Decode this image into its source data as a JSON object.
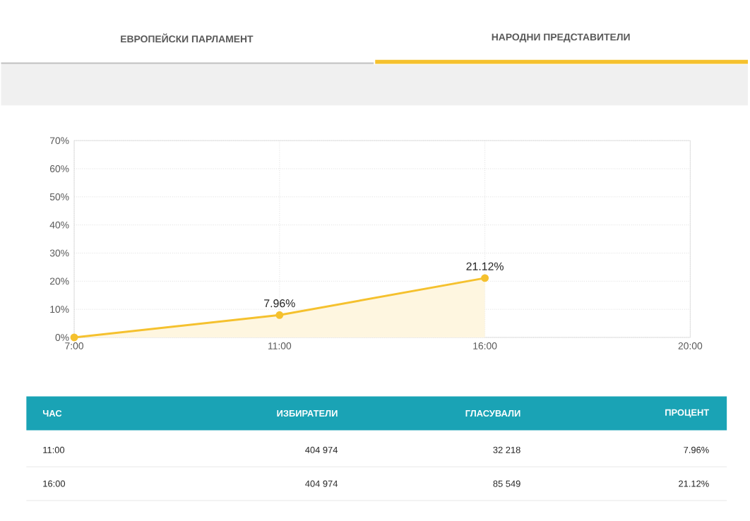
{
  "chart_data": {
    "type": "area",
    "categories": [
      "7:00",
      "11:00",
      "16:00",
      "20:00"
    ],
    "values": [
      0,
      7.96,
      21.12,
      null
    ],
    "value_labels": [
      null,
      "7.96%",
      "21.12%",
      null
    ],
    "color": "#f5c12e",
    "marker": "circle",
    "ylim": [
      0,
      70
    ],
    "yticks": [
      {
        "value": 0,
        "label": "0%"
      },
      {
        "value": 10,
        "label": "10%"
      },
      {
        "value": 20,
        "label": "20%"
      },
      {
        "value": 30,
        "label": "30%"
      },
      {
        "value": 40,
        "label": "40%"
      },
      {
        "value": 50,
        "label": "50%"
      },
      {
        "value": 60,
        "label": "60%"
      },
      {
        "value": 70,
        "label": "70%"
      }
    ],
    "grid": true,
    "annotations": [
      "ЕВРОПЕЙСКИ ПАРЛАМЕНТ",
      "НАРОДНИ ПРЕДСТАВИТЕЛИ",
      "ЧАС",
      "ИЗБИРАТЕЛИ",
      "ГЛАСУВАЛИ",
      "ПРОЦЕНТ",
      "11:00",
      "404 974",
      "32 218",
      "7.96%",
      "16:00",
      "404 974",
      "85 549",
      "21.12%"
    ]
  }
}
